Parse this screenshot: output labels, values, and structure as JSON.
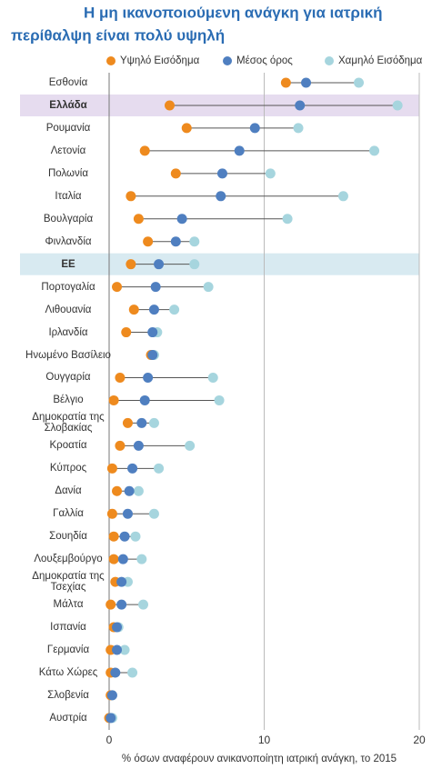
{
  "chart_data": {
    "type": "dot",
    "title": [
      "Η μη ικανοποιούμενη ανάγκη για ιατρική",
      "περίθαλψη είναι πολύ υψηλή"
    ],
    "x_label": "% όσων αναφέρουν ανικανοποίητη ιατρική ανάγκη, το 2015",
    "categories": [
      "Εσθονία",
      "Ελλάδα",
      "Ρουμανία",
      "Λετονία",
      "Πολωνία",
      "Ιταλία",
      "Βουλγαρία",
      "Φινλανδία",
      "ΕΕ",
      "Πορτογαλία",
      "Λιθουανία",
      "Ιρλανδία",
      "Ηνωμένο Βασίλειο",
      "Ουγγαρία",
      "Βέλγιο",
      "Δημοκρατία της Σλοβακίας",
      "Κροατία",
      "Κύπρος",
      "Δανία",
      "Γαλλία",
      "Σουηδία",
      "Λουξεμβούργο",
      "Δημοκρατία της Τσεχίας",
      "Μάλτα",
      "Ισπανία",
      "Γερμανία",
      "Κάτω Χώρες",
      "Σλοβενία",
      "Αυστρία"
    ],
    "series": [
      {
        "name": "Υψηλό Εισόδημα",
        "color": "#ee8a1e",
        "values": [
          11.4,
          3.9,
          5.0,
          2.3,
          4.3,
          1.4,
          1.9,
          2.5,
          1.4,
          0.5,
          1.6,
          1.1,
          2.7,
          0.7,
          0.3,
          1.2,
          0.7,
          0.2,
          0.5,
          0.2,
          0.3,
          0.3,
          0.4,
          0.1,
          0.3,
          0.1,
          0.1,
          0.1,
          0.0
        ]
      },
      {
        "name": "Μέσος όρος",
        "color": "#4f7fc0",
        "values": [
          12.7,
          12.3,
          9.4,
          8.4,
          7.3,
          7.2,
          4.7,
          4.3,
          3.2,
          3.0,
          2.9,
          2.8,
          2.8,
          2.5,
          2.3,
          2.1,
          1.9,
          1.5,
          1.3,
          1.2,
          1.0,
          0.9,
          0.8,
          0.8,
          0.5,
          0.5,
          0.4,
          0.2,
          0.1
        ]
      },
      {
        "name": "Χαμηλό Εισόδημα",
        "color": "#a6d5de",
        "values": [
          16.1,
          18.6,
          12.2,
          17.1,
          10.4,
          15.1,
          11.5,
          5.5,
          5.5,
          6.4,
          4.2,
          3.1,
          2.9,
          6.7,
          7.1,
          2.9,
          5.2,
          3.2,
          1.9,
          2.9,
          1.7,
          2.1,
          1.2,
          2.2,
          0.6,
          1.0,
          1.5,
          0.2,
          0.2
        ]
      }
    ],
    "xlim": [
      0,
      20
    ],
    "xticks": [
      0,
      10,
      20
    ],
    "grid": true,
    "highlight_rows": [
      {
        "index": 1,
        "color": "#e6dcef"
      },
      {
        "index": 8,
        "color": "#d8eaf1"
      }
    ]
  }
}
